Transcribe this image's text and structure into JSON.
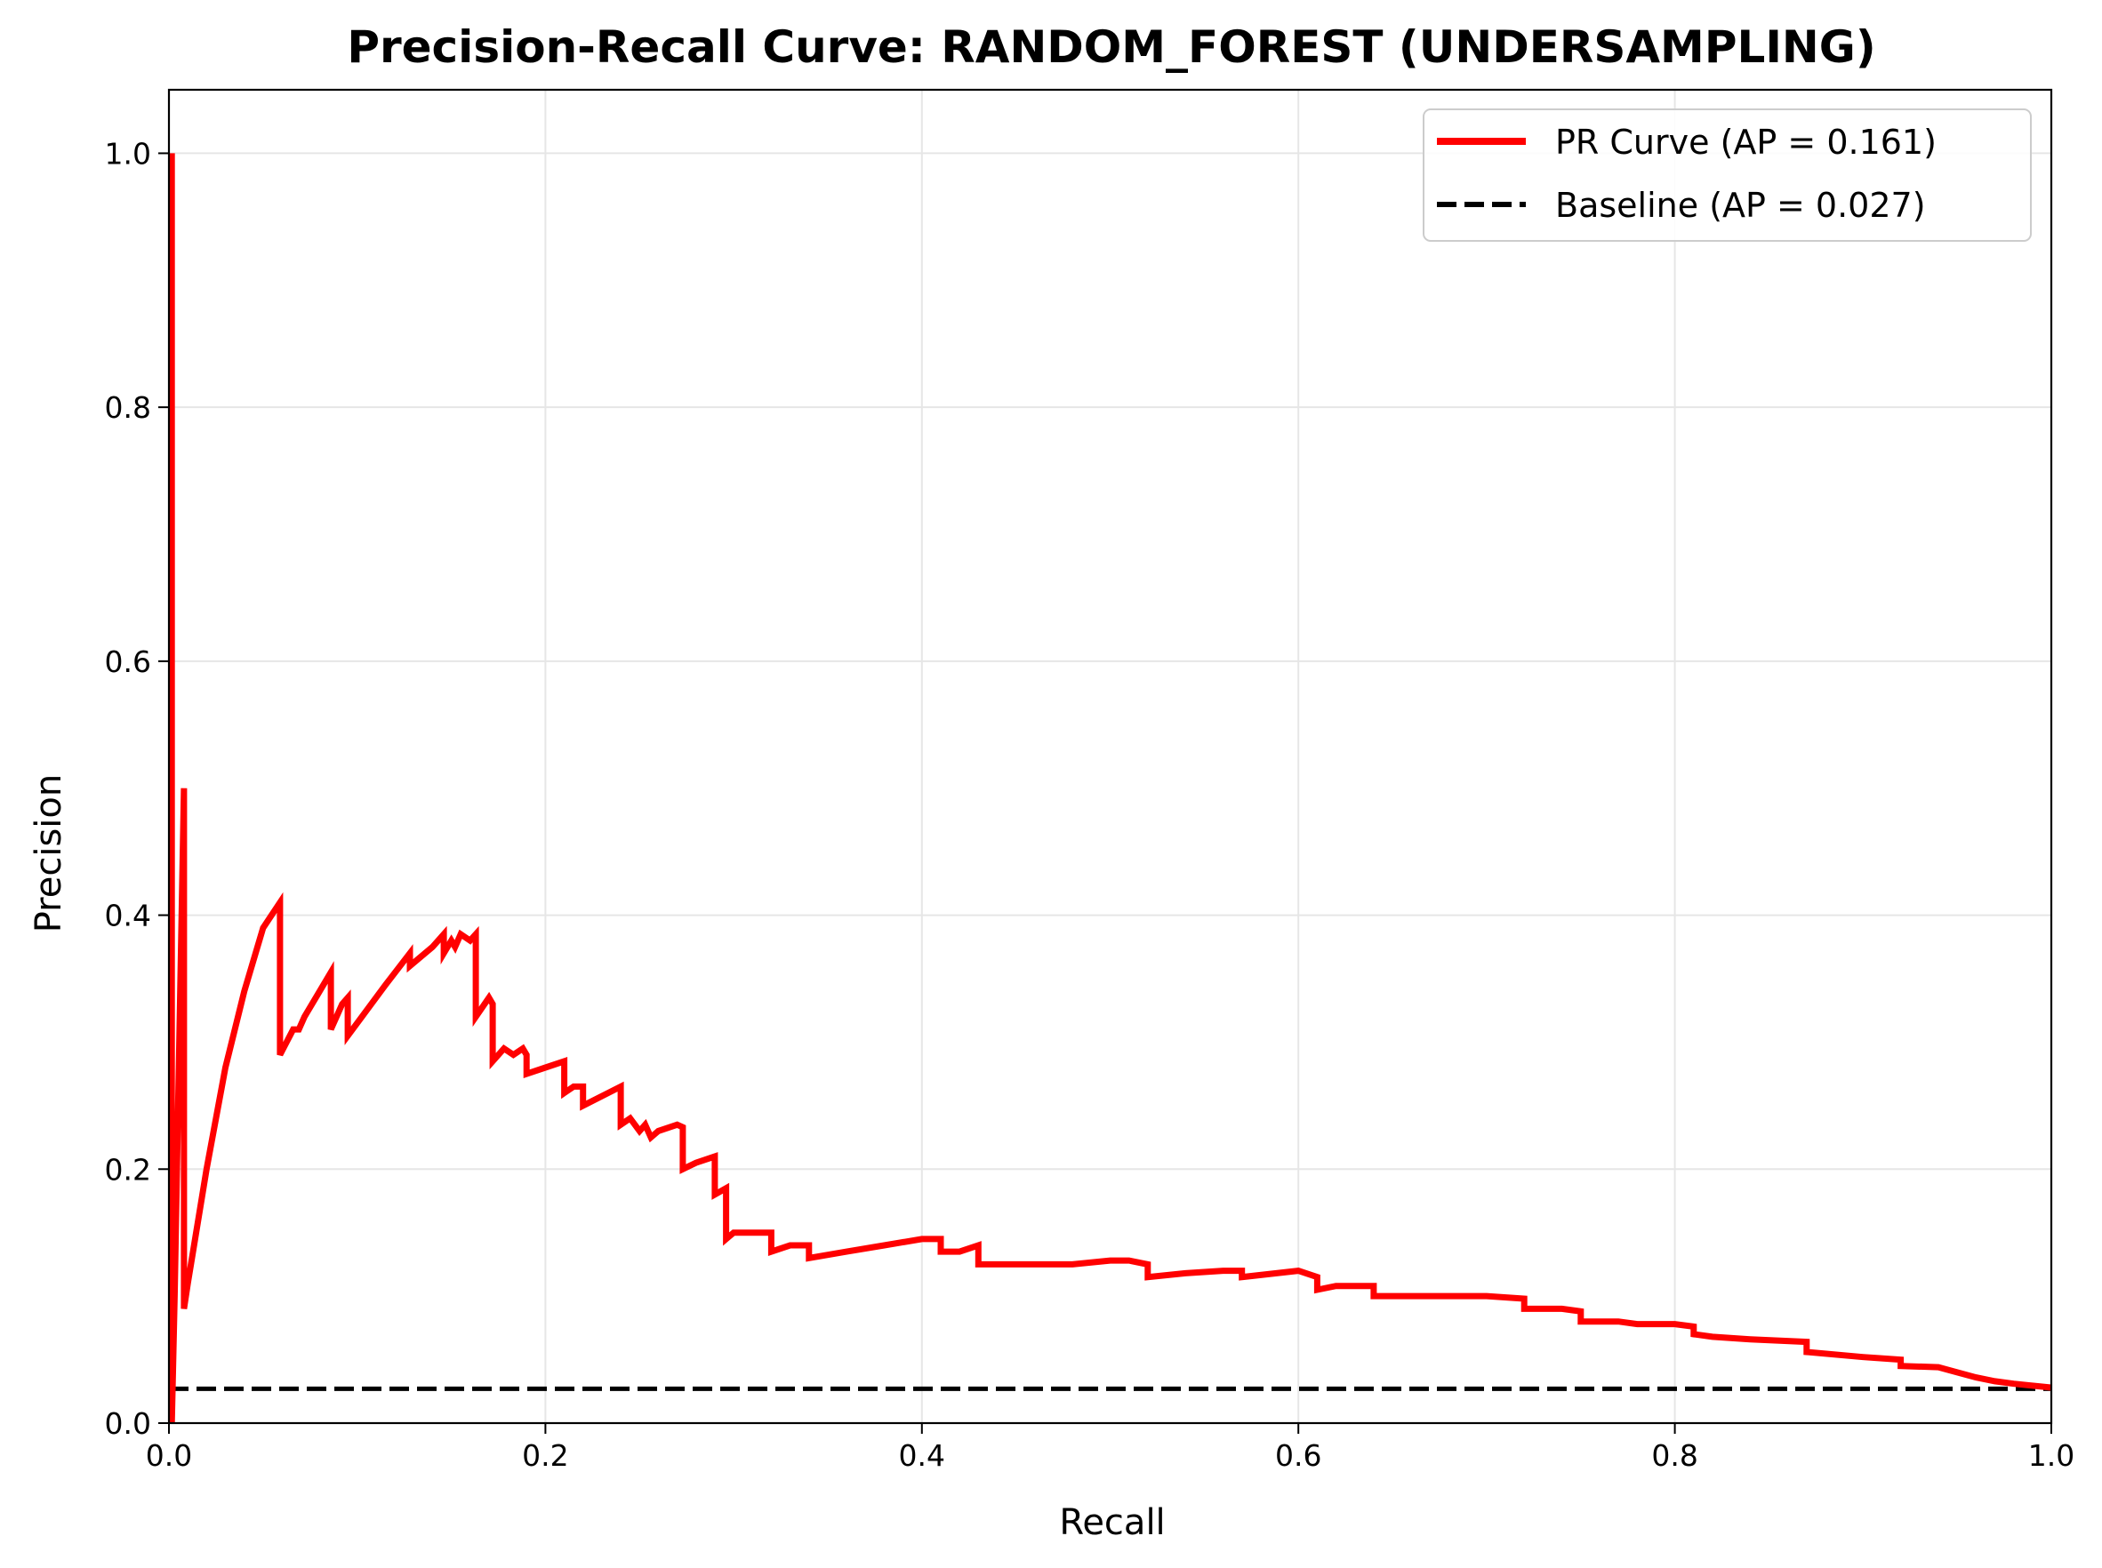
{
  "chart_data": {
    "type": "line",
    "title": "Precision-Recall Curve: RANDOM_FOREST (UNDERSAMPLING)",
    "xlabel": "Recall",
    "ylabel": "Precision",
    "xlim": [
      0.0,
      1.0
    ],
    "ylim": [
      0.0,
      1.05
    ],
    "x_ticks": [
      0.0,
      0.2,
      0.4,
      0.6,
      0.8,
      1.0
    ],
    "x_tick_labels": [
      "0.0",
      "0.2",
      "0.4",
      "0.6",
      "0.8",
      "1.0"
    ],
    "y_ticks": [
      0.0,
      0.2,
      0.4,
      0.6,
      0.8,
      1.0
    ],
    "y_tick_labels": [
      "0.0",
      "0.2",
      "0.4",
      "0.6",
      "0.8",
      "1.0"
    ],
    "grid": true,
    "legend_position": "top-right",
    "series": [
      {
        "name": "PR Curve (AP = 0.161)",
        "color": "#ff0000",
        "style": "solid",
        "x": [
          0.0,
          0.0015,
          0.0015,
          0.003,
          0.008,
          0.008,
          0.01,
          0.02,
          0.03,
          0.04,
          0.05,
          0.059,
          0.059,
          0.066,
          0.069,
          0.072,
          0.08,
          0.086,
          0.086,
          0.092,
          0.095,
          0.095,
          0.105,
          0.115,
          0.128,
          0.128,
          0.14,
          0.146,
          0.146,
          0.15,
          0.152,
          0.155,
          0.16,
          0.163,
          0.163,
          0.17,
          0.172,
          0.172,
          0.178,
          0.183,
          0.188,
          0.19,
          0.19,
          0.2,
          0.21,
          0.21,
          0.215,
          0.22,
          0.22,
          0.24,
          0.24,
          0.245,
          0.25,
          0.253,
          0.256,
          0.26,
          0.27,
          0.273,
          0.273,
          0.28,
          0.29,
          0.29,
          0.296,
          0.296,
          0.3,
          0.31,
          0.32,
          0.32,
          0.33,
          0.34,
          0.34,
          0.36,
          0.36,
          0.38,
          0.4,
          0.41,
          0.41,
          0.42,
          0.43,
          0.43,
          0.44,
          0.46,
          0.48,
          0.5,
          0.51,
          0.52,
          0.52,
          0.54,
          0.56,
          0.57,
          0.57,
          0.6,
          0.61,
          0.61,
          0.62,
          0.64,
          0.64,
          0.66,
          0.7,
          0.72,
          0.72,
          0.73,
          0.74,
          0.75,
          0.75,
          0.77,
          0.78,
          0.8,
          0.81,
          0.81,
          0.82,
          0.84,
          0.87,
          0.87,
          0.9,
          0.92,
          0.92,
          0.94,
          0.95,
          0.96,
          0.97,
          0.98,
          1.0
        ],
        "y": [
          0.0,
          1.0,
          0.0,
          0.1,
          0.5,
          0.09,
          0.11,
          0.2,
          0.28,
          0.34,
          0.39,
          0.41,
          0.29,
          0.31,
          0.31,
          0.32,
          0.34,
          0.355,
          0.31,
          0.33,
          0.335,
          0.305,
          0.325,
          0.345,
          0.37,
          0.36,
          0.375,
          0.385,
          0.37,
          0.38,
          0.375,
          0.385,
          0.38,
          0.385,
          0.32,
          0.335,
          0.33,
          0.285,
          0.295,
          0.29,
          0.295,
          0.29,
          0.275,
          0.28,
          0.285,
          0.26,
          0.265,
          0.265,
          0.25,
          0.265,
          0.235,
          0.24,
          0.23,
          0.235,
          0.225,
          0.23,
          0.235,
          0.233,
          0.2,
          0.205,
          0.21,
          0.18,
          0.185,
          0.145,
          0.15,
          0.15,
          0.15,
          0.135,
          0.14,
          0.14,
          0.13,
          0.135,
          0.135,
          0.14,
          0.145,
          0.145,
          0.135,
          0.135,
          0.14,
          0.125,
          0.125,
          0.125,
          0.125,
          0.128,
          0.128,
          0.125,
          0.115,
          0.118,
          0.12,
          0.12,
          0.115,
          0.12,
          0.115,
          0.105,
          0.108,
          0.108,
          0.1,
          0.1,
          0.1,
          0.098,
          0.09,
          0.09,
          0.09,
          0.088,
          0.08,
          0.08,
          0.078,
          0.078,
          0.076,
          0.07,
          0.068,
          0.066,
          0.064,
          0.056,
          0.052,
          0.05,
          0.045,
          0.044,
          0.04,
          0.036,
          0.033,
          0.031,
          0.028
        ]
      },
      {
        "name": "Baseline (AP = 0.027)",
        "color": "#000000",
        "style": "dashed",
        "x": [
          0.0,
          1.0
        ],
        "y": [
          0.027,
          0.027
        ]
      }
    ]
  }
}
